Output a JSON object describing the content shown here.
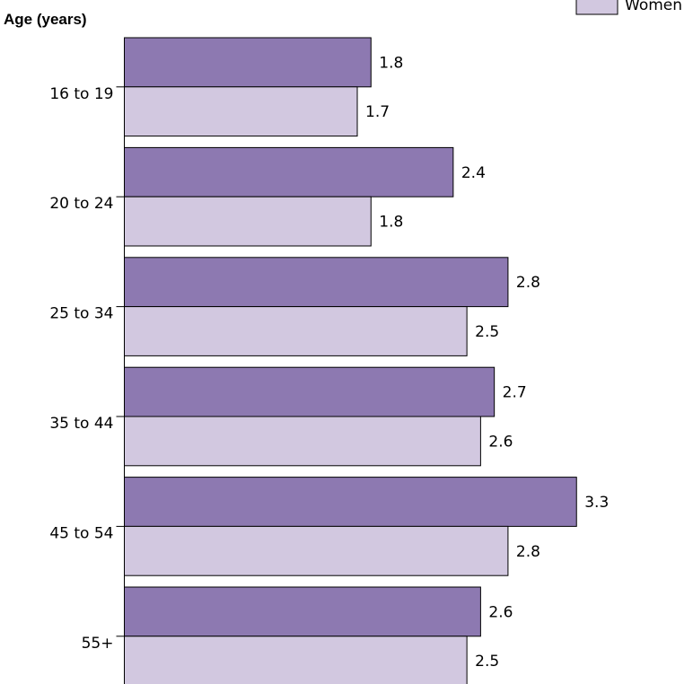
{
  "chart_data": {
    "type": "bar",
    "orientation": "horizontal",
    "ylabel": "Age (years)",
    "categories": [
      "16 to 19",
      "20 to 24",
      "25 to 34",
      "35 to 44",
      "45 to 54",
      "55+"
    ],
    "series": [
      {
        "name": "",
        "color": "#8d79b1",
        "values": [
          1.8,
          2.4,
          2.8,
          2.7,
          3.3,
          2.6
        ],
        "labels": [
          "1.8",
          "2.4",
          "2.8",
          "2.7",
          "3.3",
          "2.6"
        ]
      },
      {
        "name": "Women",
        "color": "#d2c8e0",
        "values": [
          1.7,
          1.8,
          2.5,
          2.6,
          2.8,
          2.5
        ],
        "labels": [
          "1.7",
          "1.8",
          "2.5",
          "2.6",
          "2.8",
          "2.5"
        ]
      }
    ],
    "xlim": [
      0,
      4.15
    ],
    "grid": false,
    "legend_position": "top-right"
  }
}
